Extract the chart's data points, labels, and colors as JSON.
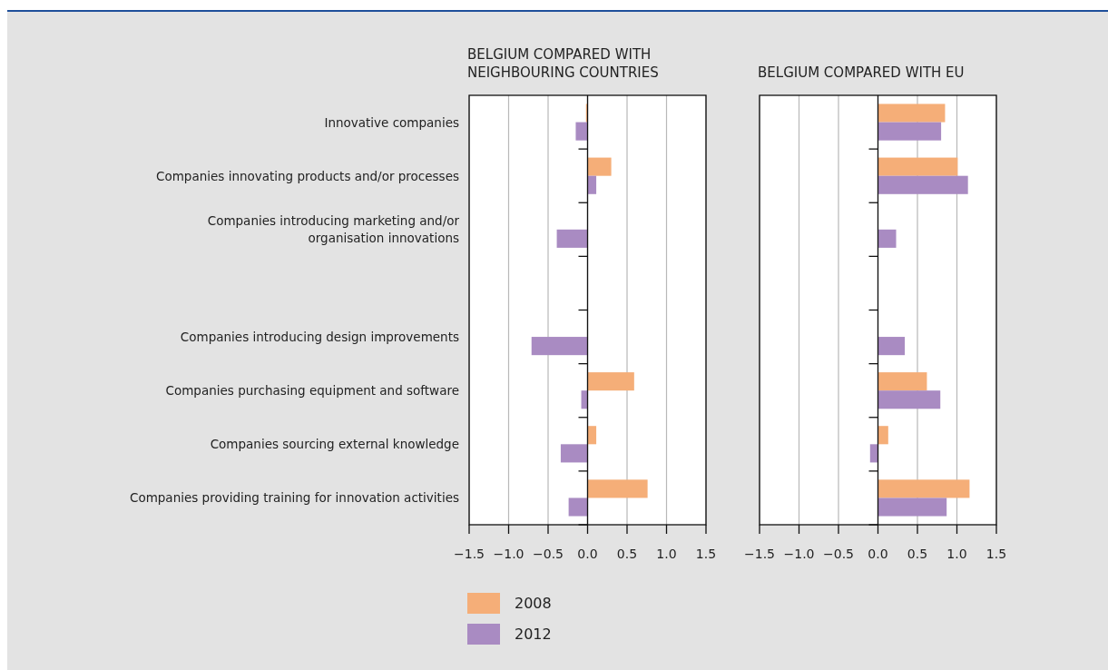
{
  "chart_data": [
    {
      "type": "bar",
      "orientation": "horizontal",
      "title": "BELGIUM COMPARED WITH NEIGHBOURING COUNTRIES",
      "categories": [
        "Innovative companies",
        "Companies innovating products and/or processes",
        "Companies introducing marketing and/or\norganisation innovations",
        null,
        "Companies introducing design improvements",
        "Companies purchasing equipment and software",
        "Companies sourcing external knowledge",
        "Companies providing training for innovation activities"
      ],
      "series": [
        {
          "name": "2008",
          "color": "#f5ae78",
          "values": [
            -0.02,
            0.3,
            null,
            null,
            null,
            0.59,
            0.11,
            0.76
          ]
        },
        {
          "name": "2012",
          "color": "#a98bc2",
          "values": [
            -0.15,
            0.11,
            -0.39,
            null,
            -0.71,
            -0.08,
            -0.34,
            -0.24
          ]
        }
      ],
      "xlim": [
        -1.5,
        1.5
      ],
      "xticks": [
        {
          "value": -1.5,
          "label": "−1.5"
        },
        {
          "value": -1,
          "label": "−1.0"
        },
        {
          "value": -0.5,
          "label": "−0.5"
        },
        {
          "value": 0,
          "label": "0.0"
        },
        {
          "value": 0.5,
          "label": "0.5"
        },
        {
          "value": 1,
          "label": "1.0"
        },
        {
          "value": 1.5,
          "label": "1.5"
        }
      ],
      "grid": "x",
      "legend": "bottom"
    },
    {
      "type": "bar",
      "orientation": "horizontal",
      "title": "BELGIUM COMPARED WITH EU",
      "categories": [
        null,
        null,
        null,
        null,
        null,
        null,
        null,
        null
      ],
      "series": [
        {
          "color": "#f5ae78",
          "values": [
            0.85,
            1.01,
            null,
            null,
            null,
            0.62,
            0.13,
            1.16
          ]
        },
        {
          "color": "#a98bc2",
          "values": [
            0.8,
            1.14,
            0.23,
            null,
            0.34,
            0.79,
            -0.1,
            0.87
          ]
        }
      ],
      "xlim": [
        -1.5,
        1.5
      ],
      "xticks": [
        {
          "value": -1.5,
          "label": "−1.5"
        },
        {
          "value": -1,
          "label": "−1.0"
        },
        {
          "value": -0.5,
          "label": "−0.5"
        },
        {
          "value": 0,
          "label": "0.0"
        },
        {
          "value": 0.5,
          "label": "0.5"
        },
        {
          "value": 1,
          "label": "1.0"
        },
        {
          "value": 1.5,
          "label": "1.5"
        }
      ],
      "grid": "x"
    }
  ]
}
